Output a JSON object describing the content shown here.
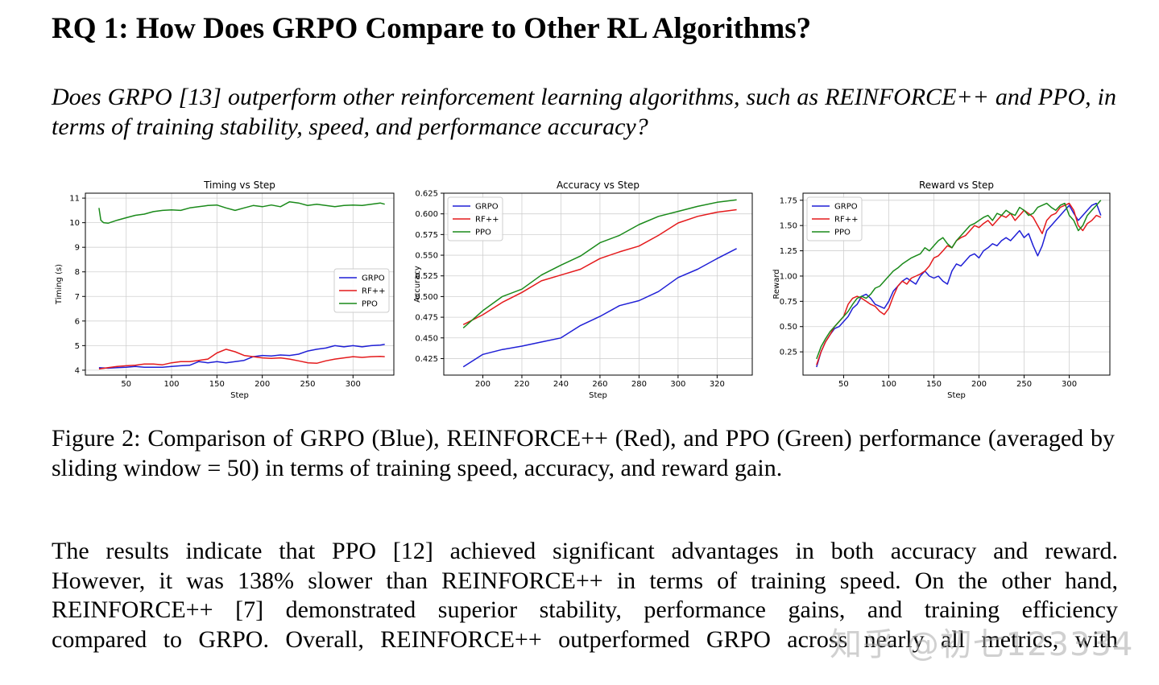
{
  "heading": "RQ 1: How Does GRPO Compare to Other RL Algorithms?",
  "question": "Does GRPO [13] outperform other reinforcement learning algorithms, such as REINFORCE++ and PPO, in terms of training stability, speed, and performance accuracy?",
  "caption": "Figure 2: Comparison of GRPO (Blue), REINFORCE++ (Red), and PPO (Green) performance (averaged by sliding window = 50) in terms of training speed, accuracy, and reward gain.",
  "body_lines": [
    "The results indicate that PPO [12] achieved significant advantages in both accuracy and reward.",
    "However, it was 138% slower than REINFORCE++ in terms of training speed. On the other hand,",
    "REINFORCE++ [7] demonstrated superior stability, performance gains, and training efficiency",
    "compared to GRPO. Overall, REINFORCE++ outperformed GRPO across nearly all metrics, with"
  ],
  "watermark": "知乎 @初七123334",
  "colors": {
    "GRPO": "#1f1fd6",
    "RF++": "#e41a1c",
    "PPO": "#1a8a1a"
  },
  "chart_data": [
    {
      "type": "line",
      "title": "Timing vs Step",
      "xlabel": "Step",
      "ylabel": "Timing (s)",
      "xlim": [
        5,
        345
      ],
      "ylim": [
        3.8,
        11.2
      ],
      "xticks": [
        50,
        100,
        150,
        200,
        250,
        300
      ],
      "yticks": [
        4,
        5,
        6,
        7,
        8,
        9,
        10,
        11
      ],
      "ytick_labels": [
        "4",
        "5",
        "6",
        "7",
        "8",
        "9",
        "10",
        "11"
      ],
      "legend": {
        "position": "center-right",
        "entries": [
          "GRPO",
          "RF++",
          "PPO"
        ]
      },
      "grid": true,
      "series": [
        {
          "name": "GRPO",
          "x": [
            20,
            30,
            40,
            50,
            60,
            70,
            80,
            90,
            100,
            110,
            120,
            130,
            140,
            150,
            160,
            170,
            180,
            190,
            200,
            210,
            220,
            230,
            240,
            250,
            260,
            270,
            280,
            290,
            300,
            310,
            320,
            330,
            335
          ],
          "y": [
            4.1,
            4.08,
            4.1,
            4.12,
            4.15,
            4.12,
            4.12,
            4.12,
            4.15,
            4.18,
            4.2,
            4.35,
            4.3,
            4.35,
            4.3,
            4.35,
            4.4,
            4.55,
            4.6,
            4.58,
            4.62,
            4.6,
            4.65,
            4.78,
            4.85,
            4.9,
            5.0,
            4.95,
            5.0,
            4.95,
            5.0,
            5.02,
            5.05
          ]
        },
        {
          "name": "RF++",
          "x": [
            20,
            30,
            40,
            50,
            60,
            70,
            80,
            90,
            100,
            110,
            120,
            130,
            140,
            150,
            160,
            170,
            180,
            190,
            200,
            210,
            220,
            230,
            240,
            250,
            260,
            270,
            280,
            290,
            300,
            310,
            320,
            330,
            335
          ],
          "y": [
            4.05,
            4.1,
            4.15,
            4.18,
            4.2,
            4.25,
            4.25,
            4.22,
            4.3,
            4.35,
            4.35,
            4.4,
            4.45,
            4.7,
            4.85,
            4.75,
            4.6,
            4.55,
            4.5,
            4.48,
            4.5,
            4.45,
            4.38,
            4.3,
            4.28,
            4.38,
            4.45,
            4.5,
            4.55,
            4.52,
            4.55,
            4.56,
            4.55
          ]
        },
        {
          "name": "PPO",
          "x": [
            20,
            22,
            25,
            30,
            40,
            50,
            60,
            70,
            80,
            90,
            100,
            110,
            120,
            130,
            140,
            150,
            160,
            170,
            180,
            190,
            200,
            210,
            220,
            230,
            240,
            250,
            260,
            270,
            280,
            290,
            300,
            310,
            320,
            330,
            335
          ],
          "y": [
            10.6,
            10.1,
            10.0,
            9.98,
            10.1,
            10.2,
            10.3,
            10.35,
            10.45,
            10.5,
            10.52,
            10.5,
            10.6,
            10.65,
            10.7,
            10.72,
            10.6,
            10.5,
            10.6,
            10.7,
            10.65,
            10.72,
            10.65,
            10.85,
            10.8,
            10.7,
            10.75,
            10.7,
            10.65,
            10.7,
            10.72,
            10.7,
            10.75,
            10.8,
            10.75
          ]
        }
      ]
    },
    {
      "type": "line",
      "title": "Accuracy vs Step",
      "xlabel": "Step",
      "ylabel": "Accuracy",
      "xlim": [
        180,
        338
      ],
      "ylim": [
        0.405,
        0.625
      ],
      "xticks": [
        200,
        220,
        240,
        260,
        280,
        300,
        320
      ],
      "yticks": [
        0.425,
        0.45,
        0.475,
        0.5,
        0.525,
        0.55,
        0.575,
        0.6,
        0.625
      ],
      "ytick_labels": [
        "0.425",
        "0.450",
        "0.475",
        "0.500",
        "0.525",
        "0.550",
        "0.575",
        "0.600",
        "0.625"
      ],
      "legend": {
        "position": "top-left",
        "entries": [
          "GRPO",
          "RF++",
          "PPO"
        ]
      },
      "grid": true,
      "series": [
        {
          "name": "GRPO",
          "x": [
            190,
            200,
            210,
            220,
            230,
            240,
            250,
            260,
            270,
            280,
            290,
            300,
            310,
            320,
            330
          ],
          "y": [
            0.415,
            0.43,
            0.436,
            0.44,
            0.445,
            0.45,
            0.465,
            0.476,
            0.489,
            0.495,
            0.506,
            0.523,
            0.533,
            0.546,
            0.558
          ]
        },
        {
          "name": "RF++",
          "x": [
            190,
            200,
            210,
            220,
            230,
            240,
            250,
            260,
            270,
            280,
            290,
            300,
            310,
            320,
            330
          ],
          "y": [
            0.466,
            0.478,
            0.493,
            0.505,
            0.519,
            0.526,
            0.533,
            0.546,
            0.554,
            0.561,
            0.574,
            0.589,
            0.597,
            0.602,
            0.605
          ]
        },
        {
          "name": "PPO",
          "x": [
            190,
            200,
            210,
            220,
            230,
            240,
            250,
            260,
            270,
            280,
            290,
            300,
            310,
            320,
            330
          ],
          "y": [
            0.462,
            0.483,
            0.5,
            0.509,
            0.526,
            0.538,
            0.549,
            0.565,
            0.574,
            0.587,
            0.597,
            0.603,
            0.609,
            0.614,
            0.617
          ]
        }
      ]
    },
    {
      "type": "line",
      "title": "Reward vs Step",
      "xlabel": "Step",
      "ylabel": "Reward",
      "xlim": [
        5,
        345
      ],
      "ylim": [
        0.02,
        1.82
      ],
      "xticks": [
        50,
        100,
        150,
        200,
        250,
        300
      ],
      "yticks": [
        0.25,
        0.5,
        0.75,
        1.0,
        1.25,
        1.5,
        1.75
      ],
      "ytick_labels": [
        "0.25",
        "0.50",
        "0.75",
        "1.00",
        "1.25",
        "1.50",
        "1.75"
      ],
      "legend": {
        "position": "top-left",
        "entries": [
          "GRPO",
          "RF++",
          "PPO"
        ]
      },
      "grid": true,
      "series": [
        {
          "name": "GRPO",
          "x": [
            20,
            25,
            30,
            35,
            40,
            45,
            50,
            55,
            60,
            65,
            70,
            75,
            80,
            85,
            90,
            95,
            100,
            105,
            110,
            115,
            120,
            125,
            130,
            135,
            140,
            145,
            150,
            155,
            160,
            165,
            170,
            175,
            180,
            185,
            190,
            195,
            200,
            205,
            210,
            215,
            220,
            225,
            230,
            235,
            240,
            245,
            250,
            255,
            260,
            265,
            270,
            275,
            280,
            285,
            290,
            295,
            300,
            305,
            310,
            315,
            320,
            325,
            330,
            335
          ],
          "y": [
            0.1,
            0.25,
            0.35,
            0.42,
            0.48,
            0.5,
            0.55,
            0.6,
            0.68,
            0.72,
            0.8,
            0.82,
            0.78,
            0.72,
            0.7,
            0.68,
            0.75,
            0.85,
            0.9,
            0.95,
            0.98,
            0.95,
            0.92,
            1.0,
            1.05,
            1.0,
            0.98,
            1.0,
            0.95,
            0.92,
            1.05,
            1.12,
            1.1,
            1.15,
            1.2,
            1.22,
            1.18,
            1.25,
            1.28,
            1.32,
            1.3,
            1.35,
            1.38,
            1.35,
            1.4,
            1.45,
            1.38,
            1.42,
            1.3,
            1.2,
            1.3,
            1.45,
            1.5,
            1.55,
            1.6,
            1.65,
            1.7,
            1.62,
            1.55,
            1.6,
            1.65,
            1.7,
            1.72,
            1.6
          ]
        },
        {
          "name": "RF++",
          "x": [
            20,
            25,
            30,
            35,
            40,
            45,
            50,
            55,
            60,
            65,
            70,
            75,
            80,
            85,
            90,
            95,
            100,
            105,
            110,
            115,
            120,
            125,
            130,
            135,
            140,
            145,
            150,
            155,
            160,
            165,
            170,
            175,
            180,
            185,
            190,
            195,
            200,
            205,
            210,
            215,
            220,
            225,
            230,
            235,
            240,
            245,
            250,
            255,
            260,
            265,
            270,
            275,
            280,
            285,
            290,
            295,
            300,
            305,
            310,
            315,
            320,
            325,
            330,
            335
          ],
          "y": [
            0.12,
            0.25,
            0.35,
            0.42,
            0.5,
            0.55,
            0.6,
            0.72,
            0.78,
            0.8,
            0.78,
            0.75,
            0.72,
            0.7,
            0.65,
            0.62,
            0.68,
            0.8,
            0.9,
            0.95,
            0.92,
            0.98,
            1.0,
            1.02,
            1.05,
            1.1,
            1.18,
            1.2,
            1.25,
            1.3,
            1.28,
            1.35,
            1.38,
            1.4,
            1.45,
            1.5,
            1.48,
            1.52,
            1.55,
            1.5,
            1.55,
            1.6,
            1.58,
            1.62,
            1.55,
            1.6,
            1.65,
            1.62,
            1.58,
            1.5,
            1.42,
            1.55,
            1.6,
            1.62,
            1.68,
            1.7,
            1.72,
            1.65,
            1.5,
            1.45,
            1.52,
            1.55,
            1.6,
            1.58
          ]
        },
        {
          "name": "PPO",
          "x": [
            20,
            25,
            30,
            35,
            40,
            45,
            50,
            55,
            60,
            65,
            70,
            75,
            80,
            85,
            90,
            95,
            100,
            105,
            110,
            115,
            120,
            125,
            130,
            135,
            140,
            145,
            150,
            155,
            160,
            165,
            170,
            175,
            180,
            185,
            190,
            195,
            200,
            205,
            210,
            215,
            220,
            225,
            230,
            235,
            240,
            245,
            250,
            255,
            260,
            265,
            270,
            275,
            280,
            285,
            290,
            295,
            300,
            305,
            310,
            315,
            320,
            325,
            330,
            335
          ],
          "y": [
            0.18,
            0.3,
            0.38,
            0.45,
            0.5,
            0.55,
            0.6,
            0.65,
            0.72,
            0.78,
            0.8,
            0.78,
            0.82,
            0.88,
            0.9,
            0.95,
            1.0,
            1.05,
            1.08,
            1.12,
            1.15,
            1.18,
            1.2,
            1.22,
            1.28,
            1.25,
            1.3,
            1.35,
            1.38,
            1.32,
            1.28,
            1.35,
            1.4,
            1.45,
            1.5,
            1.52,
            1.55,
            1.58,
            1.6,
            1.55,
            1.62,
            1.6,
            1.65,
            1.62,
            1.6,
            1.68,
            1.65,
            1.6,
            1.62,
            1.68,
            1.7,
            1.72,
            1.68,
            1.65,
            1.7,
            1.72,
            1.6,
            1.55,
            1.45,
            1.5,
            1.6,
            1.65,
            1.7,
            1.75
          ]
        }
      ]
    }
  ]
}
